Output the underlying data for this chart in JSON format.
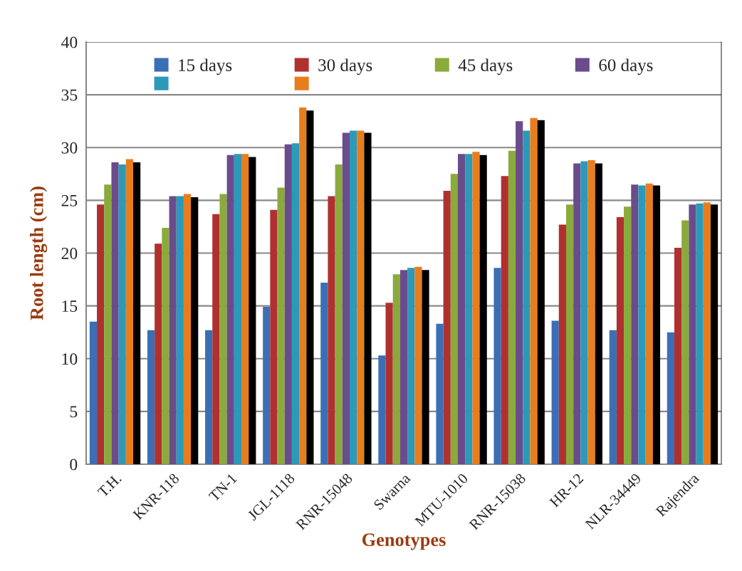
{
  "chart_data": {
    "type": "bar",
    "xlabel": "Genotypes",
    "ylabel": "Root length (cm)",
    "categories": [
      "T.H.",
      "KNR-118",
      "TN-1",
      "JGL-1118",
      "RNR-15048",
      "Swarna",
      "MTU-1010",
      "RNR-15038",
      "HR-12",
      "NLR-34449",
      "Rajendra"
    ],
    "series": [
      {
        "name": "15 days",
        "color": "#3a6fb5",
        "values": [
          13.5,
          12.7,
          12.7,
          14.9,
          17.2,
          10.3,
          13.3,
          18.6,
          13.6,
          12.7,
          12.5
        ]
      },
      {
        "name": "30 days",
        "color": "#b03030",
        "values": [
          24.6,
          20.9,
          23.7,
          24.1,
          25.4,
          15.3,
          25.9,
          27.3,
          22.7,
          23.4,
          20.5
        ]
      },
      {
        "name": "45 days",
        "color": "#8aaa3c",
        "values": [
          26.5,
          22.4,
          25.6,
          26.2,
          28.4,
          18.0,
          27.5,
          29.7,
          24.6,
          24.4,
          23.1
        ]
      },
      {
        "name": "60 days",
        "color": "#6a4c8c",
        "values": [
          28.6,
          25.4,
          29.3,
          30.3,
          31.4,
          18.4,
          29.4,
          32.5,
          28.5,
          26.5,
          24.6
        ]
      },
      {
        "color": "#2b9ab8",
        "values": [
          28.4,
          25.4,
          29.4,
          30.4,
          31.6,
          18.6,
          29.4,
          31.6,
          28.7,
          26.4,
          24.7
        ]
      },
      {
        "color": "#e87d1e",
        "values": [
          28.9,
          25.6,
          29.4,
          33.8,
          31.6,
          18.7,
          29.6,
          32.8,
          28.8,
          26.6,
          24.8
        ]
      },
      {
        "color": "#000000",
        "values": [
          28.6,
          25.3,
          29.1,
          33.5,
          31.4,
          18.4,
          29.3,
          32.6,
          28.5,
          26.4,
          24.6
        ]
      }
    ],
    "ylim": [
      0,
      40
    ],
    "yticks": [
      0,
      5,
      10,
      15,
      20,
      25,
      30,
      35,
      40
    ],
    "grid": "y",
    "legend": "top"
  }
}
